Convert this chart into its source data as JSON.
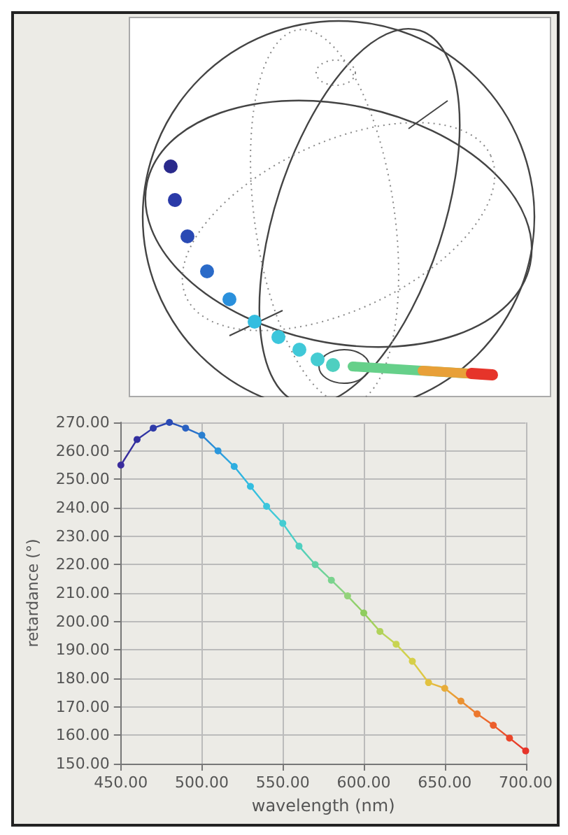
{
  "chart_data": {
    "type": "line",
    "xlabel": "wavelength (nm)",
    "ylabel": "retardance (°)",
    "x": [
      450,
      460,
      470,
      480,
      490,
      500,
      510,
      520,
      530,
      540,
      550,
      560,
      570,
      580,
      590,
      600,
      610,
      620,
      630,
      640,
      650,
      660,
      670,
      680,
      690,
      700
    ],
    "series": [
      {
        "values": [
          255,
          264,
          268,
          270,
          268,
          265.5,
          260,
          254.5,
          247.5,
          240.5,
          234.5,
          226.5,
          220,
          214.5,
          209,
          203,
          196.5,
          192,
          186,
          178.5,
          176.5,
          172,
          167.5,
          163.5,
          159,
          154.5
        ],
        "colors": [
          "#3a2c9c",
          "#33309f",
          "#2e3aa8",
          "#2a4ab4",
          "#2a62c2",
          "#2a7fd0",
          "#2b97dc",
          "#2eaee0",
          "#33bde0",
          "#3cc6dc",
          "#45ccd2",
          "#4fcfc0",
          "#62d2a6",
          "#7ad38e",
          "#93d37a",
          "#8fcd5e",
          "#b0d25a",
          "#c8d452",
          "#d6cf48",
          "#e2c240",
          "#e8ac38",
          "#ea9232",
          "#ec782e",
          "#ec5e2c",
          "#ea462a",
          "#e6342a"
        ]
      }
    ],
    "xlim": [
      450,
      700
    ],
    "xticks": [
      {
        "value": 450,
        "label": "450.00"
      },
      {
        "value": 500,
        "label": "500.00"
      },
      {
        "value": 550,
        "label": "550.00"
      },
      {
        "value": 600,
        "label": "600.00"
      },
      {
        "value": 650,
        "label": "650.00"
      },
      {
        "value": 700,
        "label": "700.00"
      }
    ],
    "ylim": [
      150,
      270
    ],
    "yticks": [
      {
        "value": 150,
        "label": "150.00"
      },
      {
        "value": 160,
        "label": "160.00"
      },
      {
        "value": 170,
        "label": "170.00"
      },
      {
        "value": 180,
        "label": "180.00"
      },
      {
        "value": 190,
        "label": "190.00"
      },
      {
        "value": 200,
        "label": "200.00"
      },
      {
        "value": 210,
        "label": "210.00"
      },
      {
        "value": 220,
        "label": "220.00"
      },
      {
        "value": 230,
        "label": "230.00"
      },
      {
        "value": 240,
        "label": "240.00"
      },
      {
        "value": 250,
        "label": "250.00"
      },
      {
        "value": 260,
        "label": "260.00"
      },
      {
        "value": 270,
        "label": "270.00"
      }
    ],
    "grid": true,
    "marker": "circle",
    "line_style": "solid"
  }
}
